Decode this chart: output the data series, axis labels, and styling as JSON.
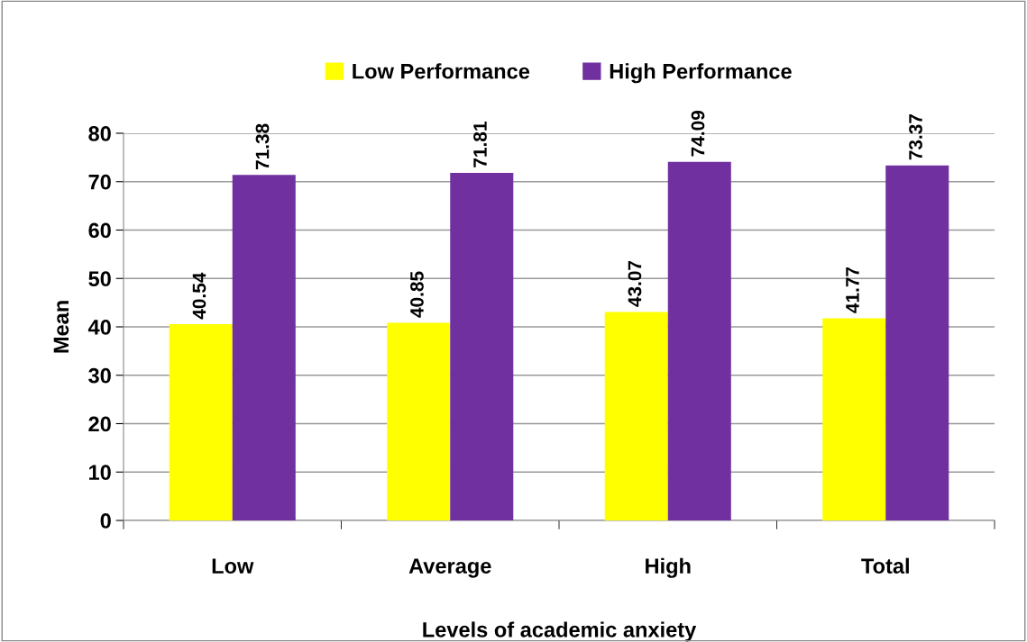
{
  "chart_data": {
    "type": "bar",
    "xlabel": "Levels of academic anxiety",
    "ylabel": "Mean",
    "categories": [
      "Low",
      "Average",
      "High",
      "Total"
    ],
    "series": [
      {
        "name": "Low Performance",
        "color": "#ffff00",
        "values": [
          40.54,
          40.85,
          43.07,
          41.77
        ]
      },
      {
        "name": "High Performance",
        "color": "#7030a0",
        "values": [
          71.38,
          71.81,
          74.09,
          73.37
        ]
      }
    ],
    "ylim": [
      0,
      80
    ],
    "yticks": [
      0,
      10,
      20,
      30,
      40,
      50,
      60,
      70,
      80
    ],
    "grid": "y",
    "legend": "top",
    "data_labels": true
  }
}
